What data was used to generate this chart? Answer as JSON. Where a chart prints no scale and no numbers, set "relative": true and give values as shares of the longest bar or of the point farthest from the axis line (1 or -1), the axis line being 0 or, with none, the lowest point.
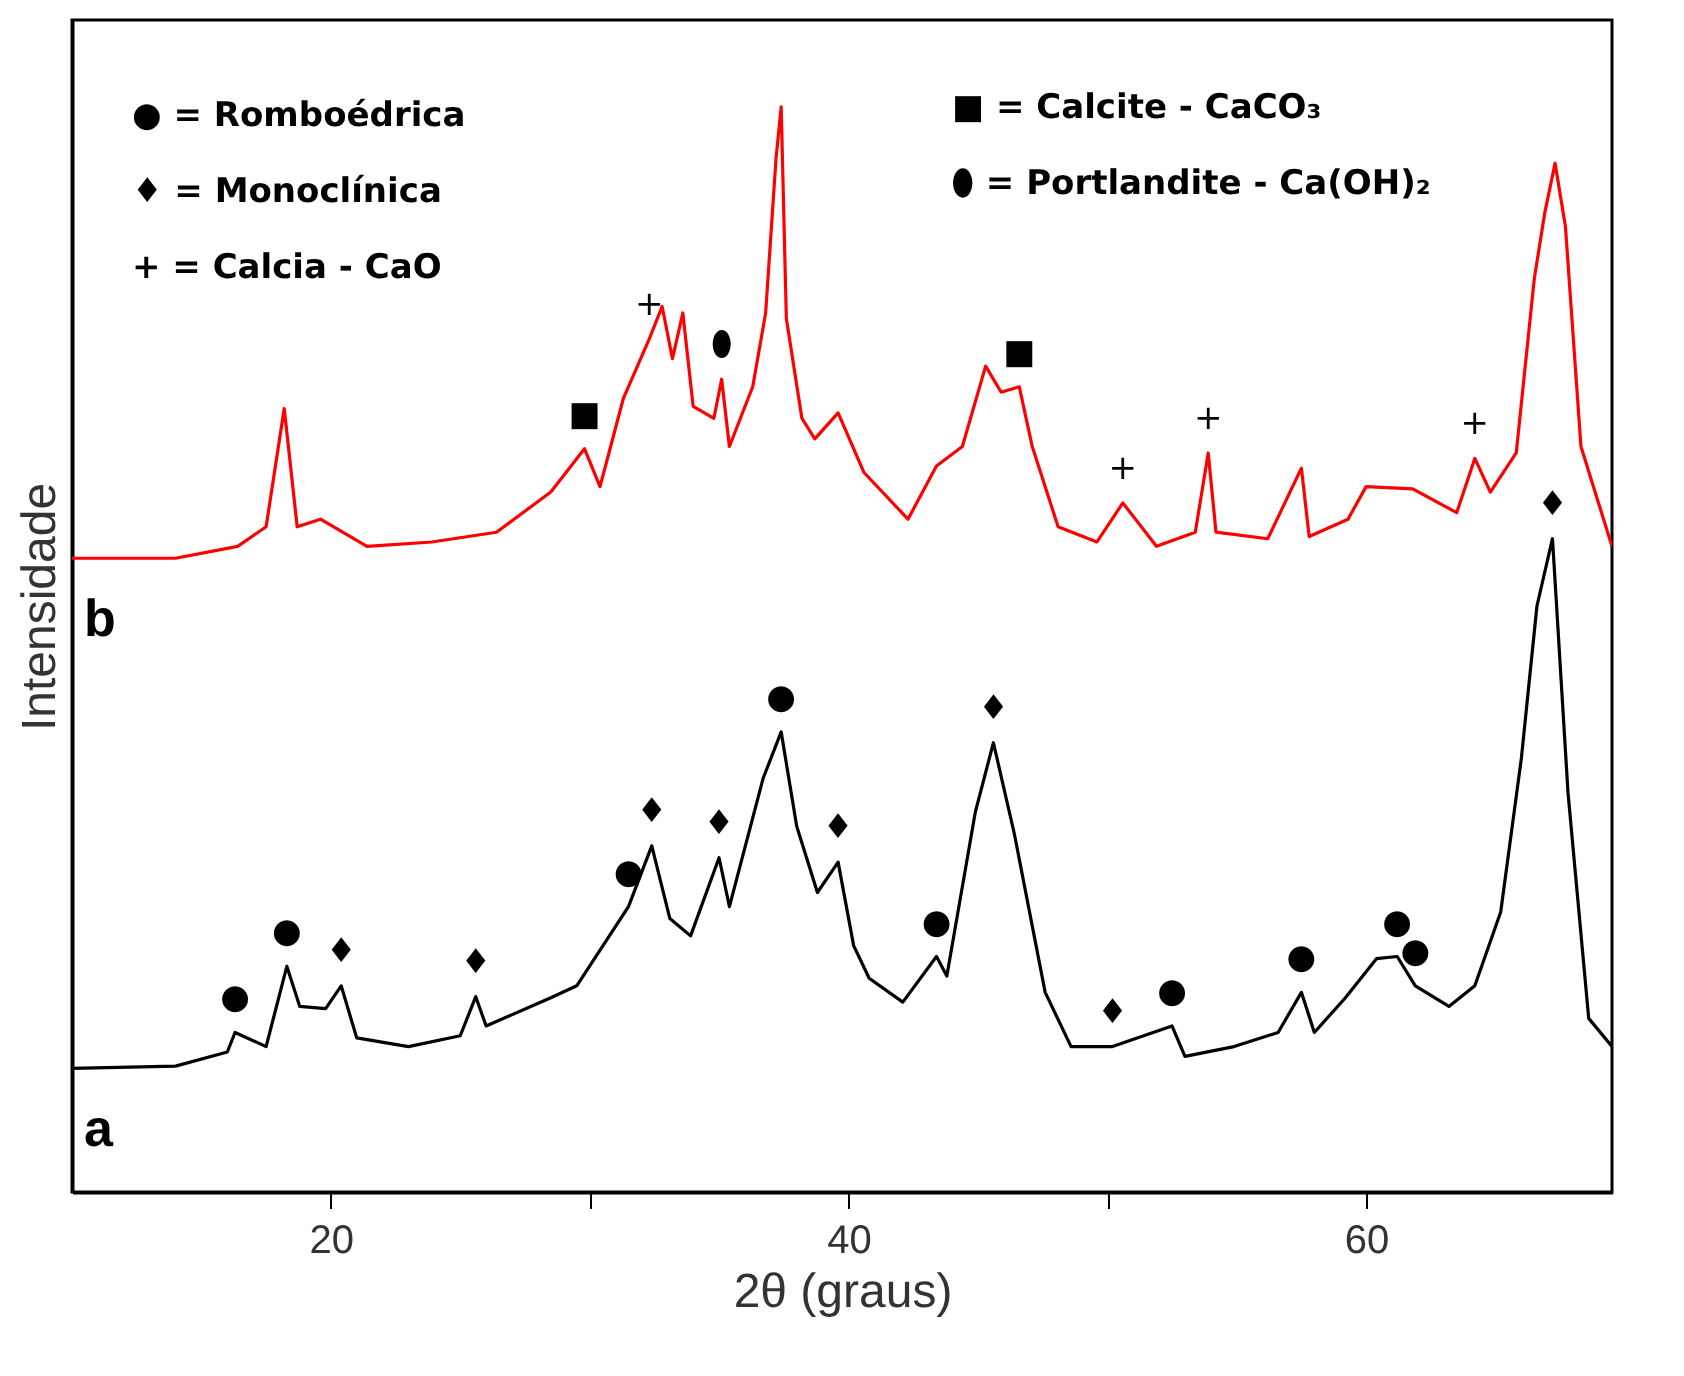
{
  "chart_data": {
    "type": "line",
    "relative": true,
    "xlabel": "2θ (graus)",
    "ylabel": "Intensidade",
    "xlim": [
      10,
      69.5
    ],
    "xticks": [
      20,
      {
        "value": 30,
        "label": null
      },
      40,
      {
        "value": 50,
        "label": null
      },
      60
    ],
    "tick_labels": "x",
    "grid": false,
    "legend": false,
    "marker": "none",
    "line_style": "solid",
    "series": [
      {
        "name": "a",
        "color": "#000000",
        "x": [
          10,
          14,
          16,
          16.3,
          17.5,
          18.3,
          18.8,
          19.8,
          20.4,
          21,
          23,
          25,
          25.6,
          26,
          28.5,
          29.5,
          31.5,
          32.4,
          33.1,
          33.9,
          35.0,
          35.4,
          36.7,
          37.4,
          38.0,
          38.8,
          39.6,
          40.2,
          40.8,
          42.1,
          43.4,
          43.8,
          44.9,
          45.6,
          46.4,
          47.6,
          48.6,
          50.2,
          52.5,
          53,
          54.9,
          56.6,
          57.5,
          58,
          59.2,
          60.4,
          61.2,
          61.9,
          63.2,
          64.2,
          65.2,
          66.0,
          66.6,
          67.2,
          67.8,
          68.6,
          69.5
        ],
        "values": [
          0.114,
          0.116,
          0.129,
          0.147,
          0.134,
          0.208,
          0.171,
          0.169,
          0.19,
          0.142,
          0.134,
          0.144,
          0.18,
          0.153,
          0.179,
          0.19,
          0.263,
          0.319,
          0.252,
          0.236,
          0.308,
          0.263,
          0.381,
          0.424,
          0.337,
          0.276,
          0.304,
          0.227,
          0.197,
          0.175,
          0.217,
          0.199,
          0.35,
          0.414,
          0.331,
          0.184,
          0.134,
          0.134,
          0.153,
          0.125,
          0.134,
          0.147,
          0.184,
          0.147,
          0.179,
          0.215,
          0.217,
          0.19,
          0.171,
          0.19,
          0.258,
          0.4,
          0.54,
          0.602,
          0.368,
          0.16,
          0.134
        ]
      },
      {
        "name": "b",
        "color": "#ff0000",
        "x": [
          10,
          14,
          16.4,
          17.5,
          18.2,
          18.7,
          19.6,
          21.4,
          23.9,
          26.4,
          28.5,
          29.8,
          30.4,
          31.3,
          32.3,
          32.8,
          33.2,
          33.6,
          34.0,
          34.8,
          35.1,
          35.4,
          36.3,
          36.8,
          37.2,
          37.4,
          37.6,
          38.2,
          38.7,
          39.6,
          40.6,
          42.3,
          43.4,
          44.4,
          45.3,
          45.9,
          46.6,
          47.1,
          48.1,
          49.6,
          50.6,
          51.9,
          53.4,
          53.9,
          54.2,
          56.2,
          57.5,
          57.8,
          59.3,
          60.0,
          61.8,
          63.5,
          64.2,
          64.8,
          65.8,
          66.5,
          66.9,
          67.3,
          67.7,
          68.3,
          69.5
        ],
        "values": [
          0.584,
          0.584,
          0.595,
          0.613,
          0.722,
          0.613,
          0.62,
          0.595,
          0.599,
          0.608,
          0.645,
          0.685,
          0.65,
          0.731,
          0.786,
          0.816,
          0.768,
          0.81,
          0.724,
          0.713,
          0.749,
          0.687,
          0.742,
          0.81,
          0.952,
          1.0,
          0.805,
          0.713,
          0.694,
          0.718,
          0.663,
          0.62,
          0.669,
          0.687,
          0.761,
          0.737,
          0.742,
          0.687,
          0.613,
          0.599,
          0.635,
          0.595,
          0.608,
          0.681,
          0.608,
          0.602,
          0.667,
          0.604,
          0.62,
          0.65,
          0.648,
          0.626,
          0.676,
          0.645,
          0.681,
          0.842,
          0.902,
          0.948,
          0.89,
          0.687,
          0.595
        ]
      }
    ],
    "annotations": [
      "● = Romboédrica",
      "♦ = Monoclínica",
      "+ = Calcia - CaO",
      "■ = Calcite - CaCO₃",
      "⬮ = Portlandite - Ca(OH)₂",
      {
        "text": "●",
        "x": 16.3,
        "y": 0.147
      },
      {
        "text": "●",
        "x": 18.3,
        "y": 0.208
      },
      {
        "text": "♦",
        "x": 20.4,
        "y": 0.19
      },
      {
        "text": "♦",
        "x": 25.6,
        "y": 0.18
      },
      {
        "text": "●",
        "x": 31.5,
        "y": 0.263
      },
      {
        "text": "♦",
        "x": 32.4,
        "y": 0.319
      },
      {
        "text": "♦",
        "x": 35.0,
        "y": 0.308
      },
      {
        "text": "●",
        "x": 37.4,
        "y": 0.424
      },
      {
        "text": "♦",
        "x": 39.6,
        "y": 0.304
      },
      {
        "text": "●",
        "x": 43.4,
        "y": 0.217
      },
      {
        "text": "♦",
        "x": 45.6,
        "y": 0.414
      },
      {
        "text": "♦",
        "x": 50.2,
        "y": 0.134
      },
      {
        "text": "●",
        "x": 52.5,
        "y": 0.153
      },
      {
        "text": "●",
        "x": 57.5,
        "y": 0.184
      },
      {
        "text": "●",
        "x": 61.2,
        "y": 0.217
      },
      {
        "text": "●",
        "x": 61.9,
        "y": 0.19
      },
      {
        "text": "♦",
        "x": 67.2,
        "y": 0.602
      },
      {
        "text": "■",
        "x": 29.8,
        "y": 0.685
      },
      {
        "text": "+",
        "x": 32.3,
        "y": 0.786
      },
      {
        "text": "⬮",
        "x": 35.1,
        "y": 0.749
      },
      {
        "text": "■",
        "x": 46.6,
        "y": 0.742
      },
      {
        "text": "+",
        "x": 50.6,
        "y": 0.635
      },
      {
        "text": "+",
        "x": 53.9,
        "y": 0.681
      },
      {
        "text": "+",
        "x": 64.2,
        "y": 0.676
      }
    ]
  }
}
